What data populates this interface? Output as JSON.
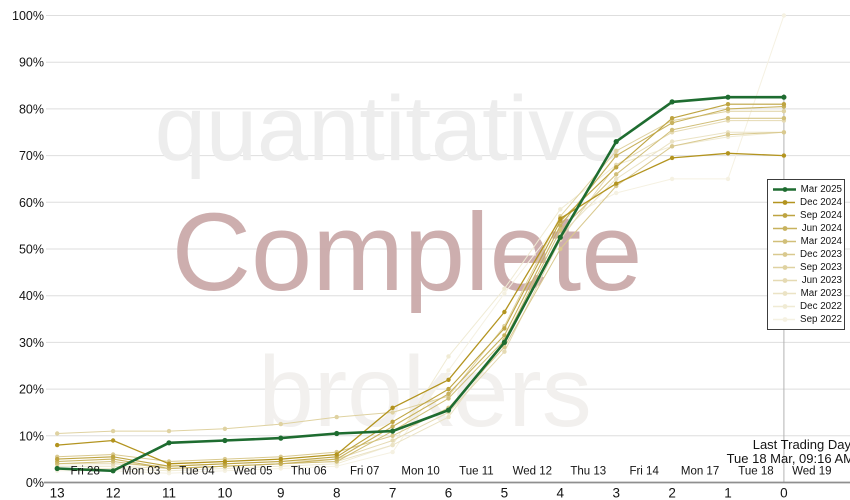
{
  "watermark": {
    "line1": "quantitative",
    "line2": "Complete",
    "line3": "brokers"
  },
  "annotation": {
    "title": "Last Trading Day",
    "subtitle": "Tue 18 Mar, 09:16 AM"
  },
  "colors": {
    "background": "#ffffff",
    "grid": "#dedede",
    "axis": "#8f8f8f",
    "text": "#141414",
    "accent_green": "#1e6c30",
    "base_gold": "#b3941f",
    "watermark_gray": "#ededed",
    "watermark_rose": "#c9a7a7",
    "watermark_light": "#f2f0ee",
    "last_day_line": "#b3b3b3"
  },
  "chart_data": {
    "type": "line",
    "title": "",
    "xlabel": "",
    "ylabel": "",
    "ylim": [
      0,
      100
    ],
    "grid": true,
    "legend_position": "right",
    "x_axis": {
      "countdown_labels": [
        "13",
        "12",
        "11",
        "10",
        "9",
        "8",
        "7",
        "6",
        "5",
        "4",
        "3",
        "2",
        "1",
        "0"
      ],
      "date_labels": [
        "Fri 28",
        "Mon 03",
        "Tue 04",
        "Wed 05",
        "Thu 06",
        "Fri 07",
        "Mon 10",
        "Tue 11",
        "Wed 12",
        "Thu 13",
        "Fri 14",
        "Mon 17",
        "Tue 18",
        "Wed 19"
      ]
    },
    "y_axis": {
      "tick_labels": [
        "0%",
        "10%",
        "20%",
        "30%",
        "40%",
        "50%",
        "60%",
        "70%",
        "80%",
        "90%",
        "100%"
      ]
    },
    "last_trading_day": {
      "at_countdown": "0"
    },
    "series": [
      {
        "name": "Mar 2025",
        "color": "#1e6c30",
        "line_width": 2.6,
        "values": [
          3,
          2.5,
          8.5,
          9,
          9.5,
          10.5,
          11,
          15.5,
          30,
          52.5,
          73,
          81.5,
          82.5,
          82.5
        ]
      },
      {
        "name": "Dec 2024",
        "color": "#b3941f",
        "line_width": 1.3,
        "values": [
          8,
          9,
          4,
          4.5,
          5,
          6,
          16,
          22,
          36.5,
          56.5,
          64,
          69.5,
          70.5,
          70
        ]
      },
      {
        "name": "Sep 2024",
        "color": "#bea441",
        "line_width": 1.1,
        "values": [
          5,
          5.5,
          3.5,
          4,
          4.5,
          5.5,
          13,
          20,
          33,
          56,
          67.5,
          78,
          81,
          81
        ]
      },
      {
        "name": "Jun 2024",
        "color": "#c8b25e",
        "line_width": 1.1,
        "values": [
          4.5,
          5,
          3,
          3.5,
          4,
          5,
          12,
          19,
          31.5,
          55,
          70,
          77,
          80,
          80.5
        ]
      },
      {
        "name": "Mar 2024",
        "color": "#d1bf79",
        "line_width": 1,
        "values": [
          4,
          4.5,
          3,
          3.5,
          4,
          4.5,
          11,
          18,
          30.5,
          54,
          66,
          75.5,
          78,
          78
        ]
      },
      {
        "name": "Dec 2023",
        "color": "#d9c98f",
        "line_width": 1,
        "values": [
          5.5,
          6,
          4.5,
          5,
          5.5,
          6.5,
          10,
          16,
          29,
          50,
          63.5,
          72,
          74.5,
          75
        ]
      },
      {
        "name": "Sep 2023",
        "color": "#dfd2a1",
        "line_width": 1,
        "values": [
          10.5,
          11,
          11,
          11.5,
          12.5,
          14,
          15,
          18.5,
          33.5,
          57,
          71,
          77.5,
          79.5,
          79.5
        ]
      },
      {
        "name": "Jun 2023",
        "color": "#e5dab3",
        "line_width": 1,
        "values": [
          4,
          4,
          3.5,
          4,
          4.5,
          5,
          9,
          15,
          28,
          52,
          68,
          75,
          77.5,
          77.5
        ]
      },
      {
        "name": "Mar 2023",
        "color": "#ebe3c5",
        "line_width": 1,
        "values": [
          3.5,
          3.5,
          3,
          3.5,
          4,
          4.5,
          8,
          14,
          30,
          53,
          65,
          73,
          75,
          75
        ]
      },
      {
        "name": "Dec 2022",
        "color": "#f0ebd4",
        "line_width": 1,
        "values": [
          3,
          3,
          2.5,
          3,
          3.5,
          4,
          8,
          27,
          41.5,
          58.5,
          68,
          72,
          74,
          75
        ]
      },
      {
        "name": "Sep 2022",
        "color": "#f5f1e2",
        "line_width": 1,
        "values": [
          2.5,
          2.5,
          2,
          2.5,
          3,
          3.5,
          6.5,
          24,
          40.5,
          56,
          62,
          65,
          65,
          100
        ]
      }
    ]
  }
}
